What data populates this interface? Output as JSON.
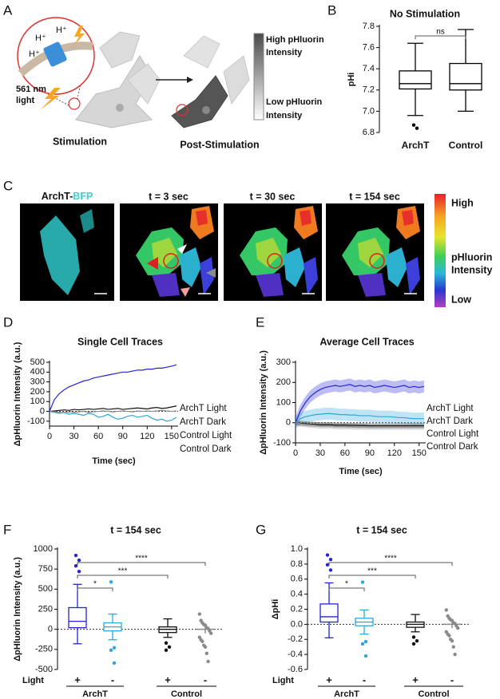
{
  "panel_labels": [
    "A",
    "B",
    "C",
    "D",
    "E",
    "F",
    "G"
  ],
  "diagram": {
    "ions": [
      "H⁺",
      "H⁺",
      "H⁺"
    ],
    "light": [
      "561 nm",
      "light"
    ],
    "stimulation": "Stimulation",
    "post_stimulation": "Post-Stimulation",
    "scale_high": [
      "High pHluorin",
      "Intensity"
    ],
    "scale_low": [
      "Low pHluorin",
      "Intensity"
    ]
  },
  "images": {
    "channel": [
      "ArchT-",
      "BFP"
    ],
    "timepoints": [
      "t = 3 sec",
      "t = 30 sec",
      "t = 154 sec"
    ],
    "colorbar": {
      "high": "High",
      "middle": [
        "pHluorin",
        "Intensity"
      ],
      "low": "Low"
    }
  },
  "chart_data": [
    {
      "type": "box",
      "title": "No Stimulation",
      "y_label": "pHi",
      "categories": [
        "ArchT",
        "Control"
      ],
      "color": "#000000",
      "boxes": [
        {
          "low": 6.96,
          "q1": 7.21,
          "median": 7.26,
          "q3": 7.38,
          "high": 7.64,
          "outliers": [
            6.87,
            6.84
          ]
        },
        {
          "low": 7.0,
          "q1": 7.2,
          "median": 7.26,
          "q3": 7.45,
          "high": 7.77,
          "outliers": []
        }
      ],
      "ylim": [
        6.8,
        7.8
      ],
      "yticks": [
        6.8,
        {
          "value": 7,
          "label": "7.0"
        },
        7.2,
        7.4,
        7.6,
        7.8
      ],
      "significance": [
        "ns"
      ]
    },
    {
      "type": "line",
      "title": "Single Cell Traces",
      "x_label": "Time (sec)",
      "y_label": "ΔpHluorin Intensity (a.u.)",
      "x": [
        0,
        6,
        12,
        18,
        24,
        30,
        36,
        42,
        48,
        54,
        60,
        66,
        72,
        78,
        84,
        90,
        96,
        102,
        108,
        114,
        120,
        126,
        132,
        138,
        144,
        150,
        156
      ],
      "series": [
        {
          "name": "ArchT Light",
          "color": "#2424d8",
          "values": [
            0,
            120,
            180,
            220,
            250,
            270,
            290,
            310,
            320,
            340,
            350,
            360,
            370,
            380,
            390,
            400,
            400,
            410,
            420,
            420,
            430,
            430,
            440,
            440,
            450,
            460,
            475
          ]
        },
        {
          "name": "ArchT Dark",
          "color": "#2ea6d8",
          "values": [
            0,
            -10,
            -20,
            -10,
            -30,
            -20,
            -30,
            -40,
            -20,
            -30,
            -60,
            -50,
            -30,
            -60,
            -80,
            -70,
            -50,
            -40,
            -60,
            -50,
            -40,
            -70,
            -90,
            -80,
            -100,
            -90,
            -60
          ]
        },
        {
          "name": "Control Light",
          "color": "#111111",
          "values": [
            0,
            5,
            10,
            15,
            10,
            20,
            15,
            20,
            25,
            20,
            25,
            30,
            20,
            25,
            30,
            20,
            25,
            30,
            35,
            30,
            25,
            35,
            40,
            30,
            35,
            45,
            55
          ]
        },
        {
          "name": "Control Dark",
          "color": "#8a8a8a",
          "values": [
            0,
            -5,
            -10,
            -15,
            -5,
            -10,
            -5,
            0,
            -10,
            -5,
            0,
            5,
            0,
            -5,
            0,
            5,
            0,
            -5,
            5,
            0,
            5,
            0,
            5,
            10,
            5,
            0,
            5
          ]
        }
      ],
      "xlim": [
        0,
        158
      ],
      "xticks": [
        0,
        30,
        60,
        90,
        120,
        150
      ],
      "ylim": [
        -150,
        500
      ],
      "yticks": [
        -100,
        0,
        100,
        200,
        300,
        400,
        500
      ],
      "ref_line": 0
    },
    {
      "type": "band",
      "title": "Average Cell Traces",
      "x_label": "Time (sec)",
      "y_label": "ΔpHluorin Intensity (a.u.)",
      "x": [
        0,
        6,
        12,
        18,
        24,
        30,
        36,
        42,
        48,
        54,
        60,
        66,
        72,
        78,
        84,
        90,
        96,
        102,
        108,
        114,
        120,
        126,
        132,
        138,
        144,
        150,
        156
      ],
      "series": [
        {
          "name": "ArchT Light",
          "color": "#2424d8",
          "error": 30,
          "values": [
            0,
            60,
            100,
            130,
            150,
            165,
            175,
            180,
            185,
            180,
            185,
            190,
            180,
            185,
            180,
            185,
            175,
            180,
            185,
            180,
            175,
            180,
            185,
            175,
            180,
            175,
            180
          ]
        },
        {
          "name": "ArchT Dark",
          "color": "#2ea6d8",
          "error": 30,
          "values": [
            0,
            20,
            30,
            35,
            40,
            42,
            45,
            45,
            43,
            40,
            40,
            38,
            38,
            35,
            35,
            35,
            32,
            30,
            30,
            30,
            28,
            25,
            25,
            22,
            20,
            20,
            20
          ]
        },
        {
          "name": "Control Light",
          "color": "#111111",
          "error": 12,
          "values": [
            0,
            -3,
            -5,
            -7,
            -8,
            -10,
            -10,
            -10,
            -12,
            -12,
            -12,
            -13,
            -13,
            -14,
            -14,
            -15,
            -15,
            -15,
            -15,
            -15,
            -15,
            -15,
            -15,
            -15,
            -15,
            -15,
            -15
          ]
        },
        {
          "name": "Control Dark",
          "color": "#8a8a8a",
          "error": 15,
          "values": [
            0,
            -5,
            -8,
            -10,
            -12,
            -15,
            -15,
            -15,
            -17,
            -18,
            -18,
            -18,
            -20,
            -20,
            -20,
            -20,
            -20,
            -20,
            -20,
            -20,
            -20,
            -20,
            -20,
            -20,
            -20,
            -20,
            -20
          ]
        }
      ],
      "xlim": [
        0,
        158
      ],
      "xticks": [
        0,
        30,
        60,
        90,
        120,
        150
      ],
      "ylim": [
        -100,
        300
      ],
      "yticks": [
        -100,
        0,
        100,
        200,
        300
      ],
      "ref_line": 0
    },
    {
      "type": "box",
      "title": "t = 154 sec",
      "y_label": "ΔpHluorin Intensity (a.u.)",
      "row_label": "Light",
      "categories": [
        "+",
        "-",
        "+",
        "-"
      ],
      "groups": [
        "ArchT",
        "Control"
      ],
      "boxes": [
        {
          "color": "#2424d8",
          "low": -180,
          "q1": 20,
          "median": 100,
          "q3": 270,
          "high": 560,
          "outliers": [
            920,
            860,
            790,
            720
          ]
        },
        {
          "color": "#2ea6d8",
          "low": -130,
          "q1": -20,
          "median": 30,
          "q3": 80,
          "high": 190,
          "outliers": [
            590,
            -230,
            -260,
            -420
          ]
        },
        {
          "color": "#111111",
          "low": -100,
          "q1": -40,
          "median": 0,
          "q3": 30,
          "high": 130,
          "outliers": [
            -170,
            -220,
            -260
          ]
        },
        {
          "color": "#8a8a8a",
          "points": [
            190,
            110,
            80,
            60,
            50,
            20,
            10,
            -20,
            -50,
            -100,
            -130,
            -150,
            -200,
            -220,
            -300,
            -400
          ],
          "mean": 0,
          "error": 50
        }
      ],
      "ylim": [
        -500,
        1000
      ],
      "yticks": [
        -500,
        -250,
        0,
        250,
        500,
        750,
        1000
      ],
      "ref_line": 0,
      "significance": [
        "*",
        "***",
        "****"
      ]
    },
    {
      "type": "box",
      "title": "t = 154 sec",
      "y_label": "ΔpHi",
      "row_label": "Light",
      "categories": [
        "+",
        "-",
        "+",
        "-"
      ],
      "groups": [
        "ArchT",
        "Control"
      ],
      "boxes": [
        {
          "color": "#2424d8",
          "low": -0.18,
          "q1": 0.03,
          "median": 0.1,
          "q3": 0.27,
          "high": 0.55,
          "outliers": [
            0.92,
            0.86,
            0.79,
            0.72
          ]
        },
        {
          "color": "#2ea6d8",
          "low": -0.13,
          "q1": -0.02,
          "median": 0.03,
          "q3": 0.08,
          "high": 0.19,
          "outliers": [
            0.56,
            -0.23,
            -0.26,
            -0.42
          ]
        },
        {
          "color": "#111111",
          "low": -0.1,
          "q1": -0.04,
          "median": 0,
          "q3": 0.03,
          "high": 0.13,
          "outliers": [
            -0.17,
            -0.22,
            -0.26
          ]
        },
        {
          "color": "#8a8a8a",
          "points": [
            0.19,
            0.11,
            0.08,
            0.06,
            0.05,
            0.02,
            0.01,
            -0.02,
            -0.05,
            -0.1,
            -0.13,
            -0.15,
            -0.2,
            -0.22,
            -0.3,
            -0.4
          ],
          "mean": 0,
          "error": 0.05
        }
      ],
      "ylim": [
        -0.6,
        1.0
      ],
      "yticks": [
        -0.6,
        -0.4,
        -0.2,
        {
          "value": 0,
          "label": "0.0"
        },
        0.2,
        0.4,
        0.6,
        0.8,
        {
          "value": 1,
          "label": "1.0"
        }
      ],
      "ref_line": 0,
      "significance": [
        "*",
        "***",
        "****"
      ]
    }
  ]
}
